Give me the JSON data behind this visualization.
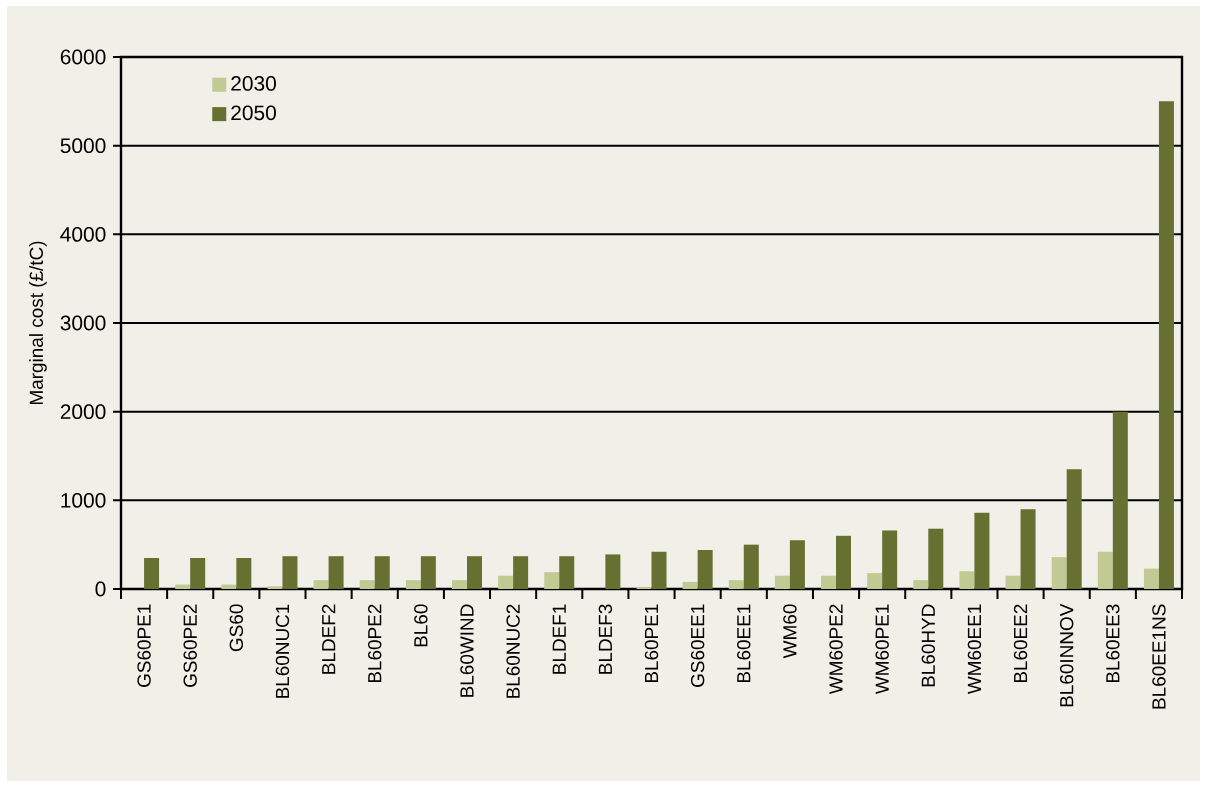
{
  "chart_data": {
    "type": "bar",
    "ylabel": "Marginal cost (£/tC)",
    "categories": [
      "GS60PE1",
      "GS60PE2",
      "GS60",
      "BL60NUC1",
      "BLDEF2",
      "BL60PE2",
      "BL60",
      "BL60WIND",
      "BL60NUC2",
      "BLDEF1",
      "BLDEF3",
      "BL60PE1",
      "GS60EE1",
      "BL60EE1",
      "WM60",
      "WM60PE2",
      "WM60PE1",
      "BL60HYD",
      "WM60EE1",
      "BL60EE2",
      "BL60INNOV",
      "BL60EE3",
      "BL60EE1NS"
    ],
    "series": [
      {
        "name": "2030",
        "color": "#c2ca94",
        "values": [
          0,
          50,
          50,
          30,
          100,
          100,
          100,
          100,
          150,
          190,
          0,
          20,
          80,
          100,
          150,
          150,
          180,
          100,
          200,
          150,
          360,
          420,
          230
        ]
      },
      {
        "name": "2050",
        "color": "#667030",
        "values": [
          350,
          350,
          350,
          370,
          370,
          370,
          370,
          370,
          370,
          370,
          390,
          420,
          440,
          500,
          550,
          600,
          660,
          680,
          860,
          900,
          1350,
          2000,
          5500
        ]
      }
    ],
    "ylim": [
      0,
      6000
    ],
    "yticks": [
      0,
      1000,
      2000,
      3000,
      4000,
      5000,
      6000
    ],
    "grid": "y",
    "legend": "top left"
  }
}
